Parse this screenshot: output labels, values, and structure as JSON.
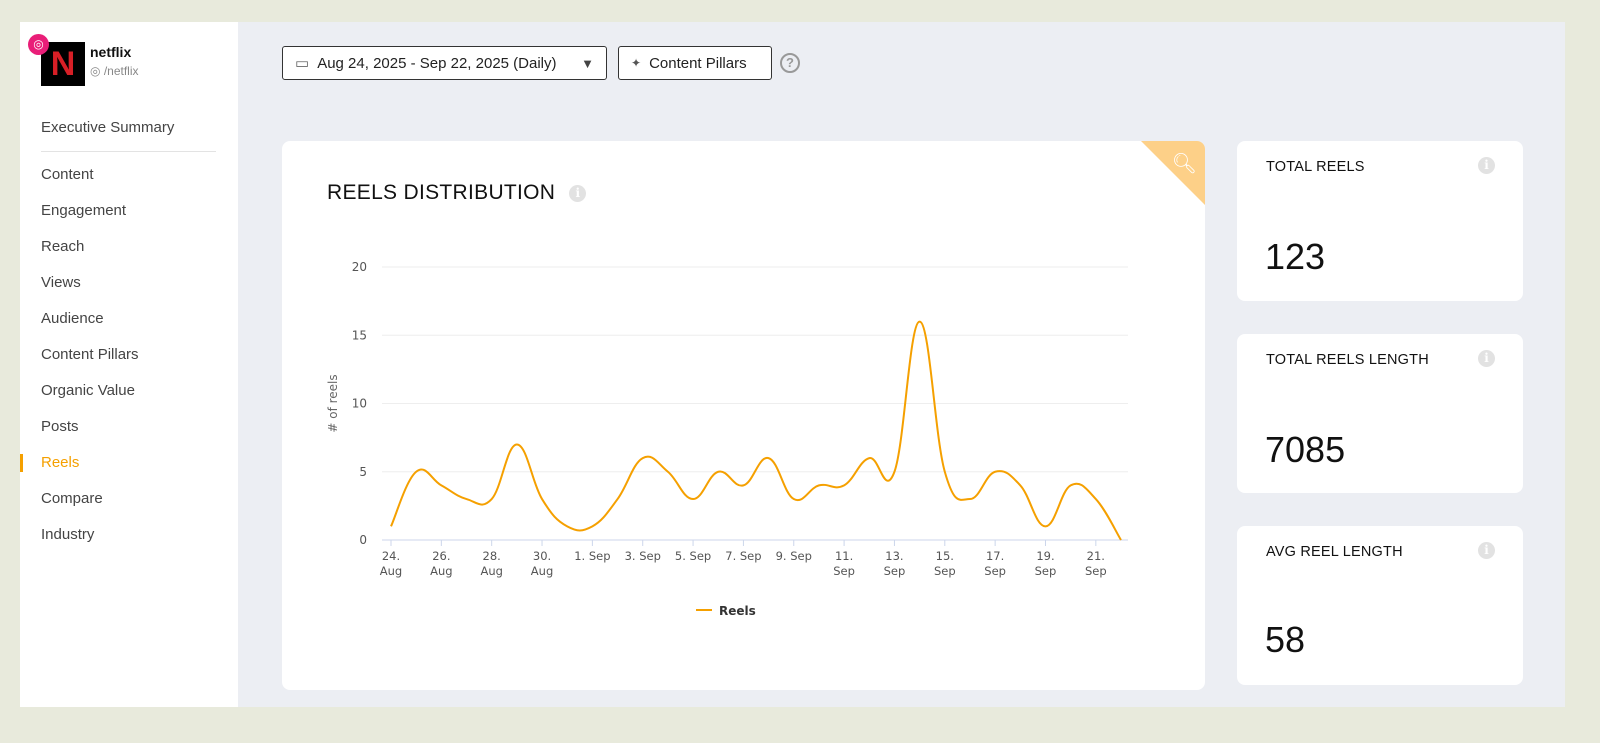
{
  "account": {
    "name": "netflix",
    "handle": "/netflix",
    "logo_letter": "N",
    "platform_icon": "instagram-icon"
  },
  "sidebar": {
    "items": [
      {
        "label": "Executive Summary"
      },
      {
        "label": "Content"
      },
      {
        "label": "Engagement"
      },
      {
        "label": "Reach"
      },
      {
        "label": "Views"
      },
      {
        "label": "Audience"
      },
      {
        "label": "Content Pillars"
      },
      {
        "label": "Organic Value"
      },
      {
        "label": "Posts"
      },
      {
        "label": "Reels",
        "active": true
      },
      {
        "label": "Compare"
      },
      {
        "label": "Industry"
      }
    ]
  },
  "toolbar": {
    "date_range": "Aug 24, 2025 - Sep 22, 2025 (Daily)",
    "content_pillars": "Content Pillars",
    "help": "?"
  },
  "chart_card": {
    "title": "REELS DISTRIBUTION"
  },
  "stats": [
    {
      "label": "TOTAL REELS",
      "value": "123"
    },
    {
      "label": "TOTAL REELS LENGTH",
      "value": "7085"
    },
    {
      "label": "AVG REEL LENGTH",
      "value": "58"
    }
  ],
  "colors": {
    "accent": "#f5a000",
    "corner": "#fdd088"
  },
  "chart_data": {
    "type": "line",
    "title": "REELS DISTRIBUTION",
    "xlabel": "",
    "ylabel": "# of reels",
    "ylim": [
      0,
      20
    ],
    "yticks": [
      0,
      5,
      10,
      15,
      20
    ],
    "grid": true,
    "legend": "bottom",
    "x": [
      "2025-08-24",
      "2025-08-25",
      "2025-08-26",
      "2025-08-27",
      "2025-08-28",
      "2025-08-29",
      "2025-08-30",
      "2025-08-31",
      "2025-09-01",
      "2025-09-02",
      "2025-09-03",
      "2025-09-04",
      "2025-09-05",
      "2025-09-06",
      "2025-09-07",
      "2025-09-08",
      "2025-09-09",
      "2025-09-10",
      "2025-09-11",
      "2025-09-12",
      "2025-09-13",
      "2025-09-14",
      "2025-09-15",
      "2025-09-16",
      "2025-09-17",
      "2025-09-18",
      "2025-09-19",
      "2025-09-20",
      "2025-09-21",
      "2025-09-22"
    ],
    "xtick_labels": [
      [
        "24.",
        "Aug"
      ],
      [
        "26.",
        "Aug"
      ],
      [
        "28.",
        "Aug"
      ],
      [
        "30.",
        "Aug"
      ],
      [
        "1. Sep",
        ""
      ],
      [
        "3. Sep",
        ""
      ],
      [
        "5. Sep",
        ""
      ],
      [
        "7. Sep",
        ""
      ],
      [
        "9. Sep",
        ""
      ],
      [
        "11.",
        "Sep"
      ],
      [
        "13.",
        "Sep"
      ],
      [
        "15.",
        "Sep"
      ],
      [
        "17.",
        "Sep"
      ],
      [
        "19.",
        "Sep"
      ],
      [
        "21.",
        "Sep"
      ]
    ],
    "series": [
      {
        "name": "Reels",
        "color": "#f5a000",
        "values": [
          1,
          5,
          4,
          3,
          3,
          7,
          3,
          1,
          1,
          3,
          6,
          5,
          3,
          5,
          4,
          6,
          3,
          4,
          4,
          6,
          5,
          16,
          5,
          3,
          5,
          4,
          1,
          4,
          3,
          0
        ]
      }
    ]
  }
}
